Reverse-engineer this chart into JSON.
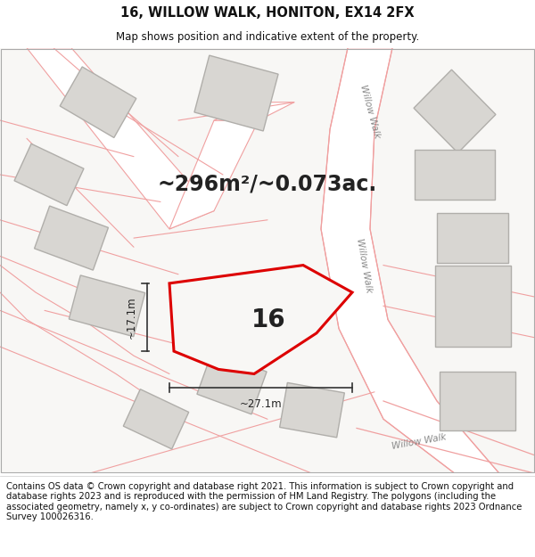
{
  "title": "16, WILLOW WALK, HONITON, EX14 2FX",
  "subtitle": "Map shows position and indicative extent of the property.",
  "footer": "Contains OS data © Crown copyright and database right 2021. This information is subject to Crown copyright and database rights 2023 and is reproduced with the permission of HM Land Registry. The polygons (including the associated geometry, namely x, y co-ordinates) are subject to Crown copyright and database rights 2023 Ordnance Survey 100026316.",
  "area_text": "~296m²/~0.073ac.",
  "plot_label": "16",
  "dim_width": "~27.1m",
  "dim_height": "~17.1m",
  "bg_color": "#ffffff",
  "map_bg": "#f8f7f5",
  "road_line_color": "#f0a0a0",
  "road_fill_color": "#ffffff",
  "building_fill": "#d8d6d2",
  "building_stroke": "#b0aeaa",
  "highlight_fill": "#f8f7f5",
  "highlight_stroke": "#dd0000",
  "road_label_color": "#888888",
  "title_fontsize": 10.5,
  "subtitle_fontsize": 8.5,
  "footer_fontsize": 7.2,
  "area_fontsize": 17,
  "plot_label_fontsize": 20,
  "dim_fontsize": 8.5
}
